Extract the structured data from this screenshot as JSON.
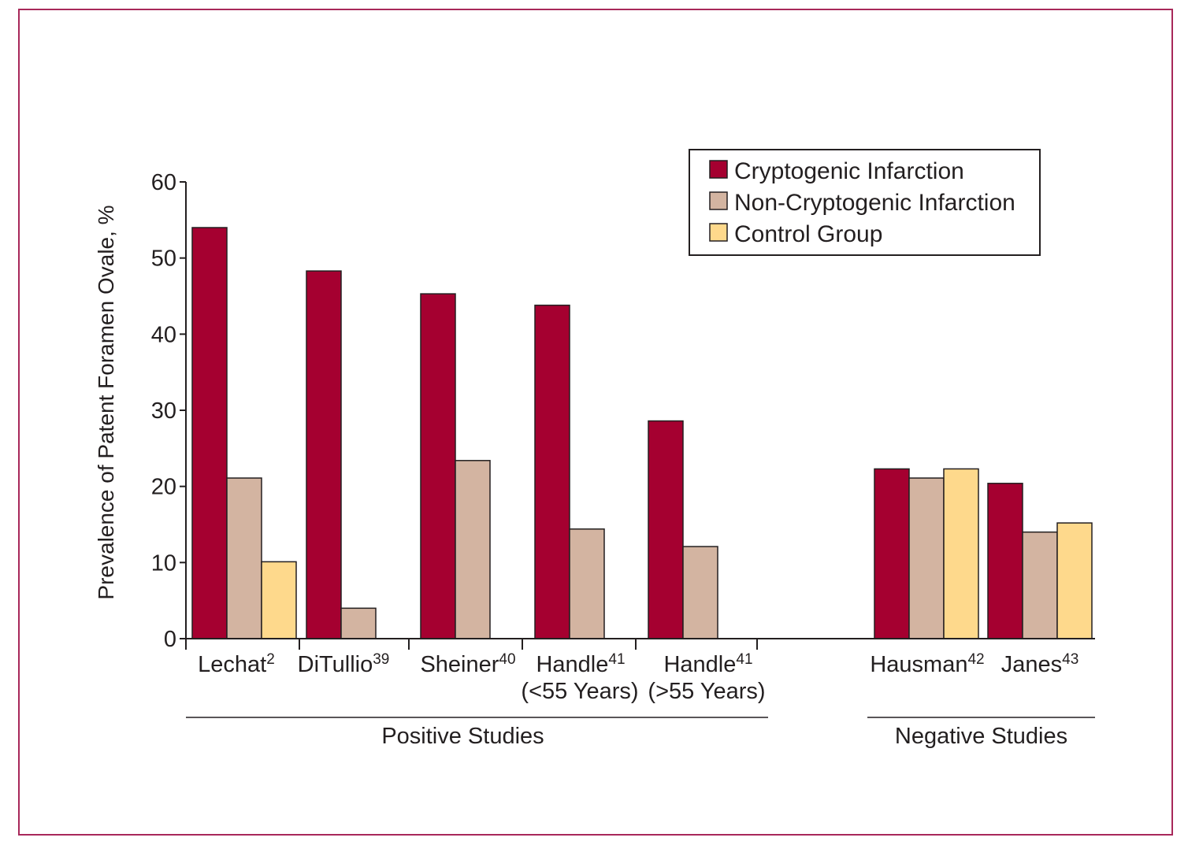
{
  "chart_data": {
    "type": "bar",
    "title": "",
    "ylabel": "Prevalence of Patent Foramen Ovale, %",
    "xlabel": "",
    "ylim": [
      0,
      60
    ],
    "yticks": [
      0,
      10,
      20,
      30,
      40,
      50,
      60
    ],
    "grid": false,
    "legend_position": "top-right",
    "categories": [
      {
        "name": "Lechat",
        "ref": "2",
        "sub": ""
      },
      {
        "name": "DiTullio",
        "ref": "39",
        "sub": ""
      },
      {
        "name": "Sheiner",
        "ref": "40",
        "sub": ""
      },
      {
        "name": "Handle",
        "ref": "41",
        "sub": "(<55 Years)"
      },
      {
        "name": "Handle",
        "ref": "41",
        "sub": "(>55 Years)"
      },
      {
        "name": "Hausman",
        "ref": "42",
        "sub": ""
      },
      {
        "name": "Janes",
        "ref": "43",
        "sub": ""
      }
    ],
    "series": [
      {
        "name": "Cryptogenic Infarction",
        "color": "#a50030",
        "values": [
          54.0,
          48.3,
          45.3,
          43.8,
          28.6,
          22.3,
          20.4
        ]
      },
      {
        "name": "Non-Cryptogenic Infarction",
        "color": "#d3b4a1",
        "values": [
          21.1,
          4.0,
          23.4,
          14.4,
          12.1,
          21.1,
          14.0
        ]
      },
      {
        "name": "Control Group",
        "color": "#fed98c",
        "values": [
          10.1,
          null,
          null,
          null,
          null,
          22.3,
          15.2
        ]
      }
    ],
    "groups": [
      {
        "label": "Positive Studies",
        "categories": [
          0,
          1,
          2,
          3,
          4
        ]
      },
      {
        "label": "Negative Studies",
        "categories": [
          5,
          6
        ]
      }
    ]
  },
  "frame_color": "#a8285a"
}
